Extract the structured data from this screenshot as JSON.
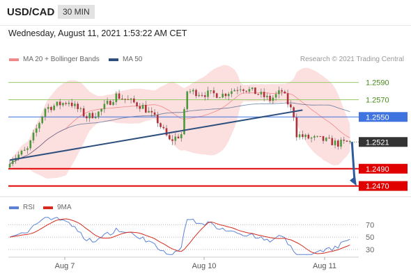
{
  "header": {
    "symbol": "USD/CAD",
    "timeframe": "30 MIN"
  },
  "timestamp": "Wednesday, August 11, 2021 1:53:22 AM CET",
  "legend": {
    "bb": "MA 20 + Bollinger Bands",
    "ma50": "MA 50",
    "credit": "Research © 2021 Trading Central"
  },
  "rsi_legend": {
    "rsi": "RSI",
    "ma": "9MA"
  },
  "colors": {
    "bb": "#f08a8a",
    "ma50": "#2e4f7e",
    "rsi": "#5b82d6",
    "rsi_ma": "#d52b1e",
    "support": "#e00000",
    "resistance": "#9acb6b",
    "pivot": "#3f73e0"
  },
  "chart_data": [
    {
      "type": "candlestick",
      "ylim": [
        1.246,
        1.2605
      ],
      "x_tick_labels": [
        "Aug 7",
        "Aug 10",
        "Aug 11"
      ],
      "levels": [
        {
          "value": 1.259,
          "label": "1.2590",
          "kind": "resistance"
        },
        {
          "value": 1.257,
          "label": "1.2570",
          "kind": "resistance"
        },
        {
          "value": 1.255,
          "label": "1.2550",
          "kind": "pivot"
        },
        {
          "value": 1.2521,
          "label": "1.2521",
          "kind": "last"
        },
        {
          "value": 1.249,
          "label": "1.2490",
          "kind": "support"
        },
        {
          "value": 1.247,
          "label": "1.2470",
          "kind": "support"
        }
      ],
      "trendline": {
        "from": 1.25,
        "to": 1.2558
      },
      "forecast_arrow": {
        "from": 1.2521,
        "to": 1.247
      }
    },
    {
      "type": "line",
      "series": [
        {
          "name": "RSI"
        },
        {
          "name": "9MA"
        }
      ],
      "ylim": [
        20,
        85
      ],
      "y_tick_labels": [
        "70",
        "50",
        "30"
      ],
      "levels": [
        70,
        50,
        30
      ]
    }
  ]
}
